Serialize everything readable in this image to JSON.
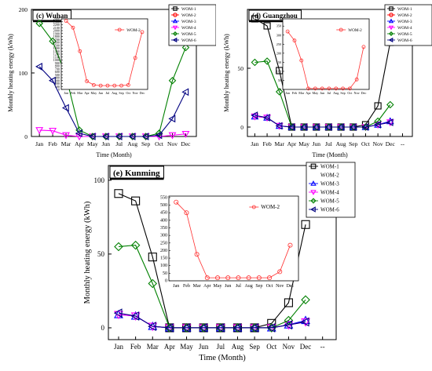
{
  "chart_data": [
    {
      "type": "line",
      "panel_label": "(c) Wuhan",
      "xlabel": "Time (Month)",
      "ylabel": "Monthly heating energy (kWh)",
      "x_ticks": [
        "Jan",
        "Feb",
        "Mar",
        "Apr",
        "May",
        "Jun",
        "Jul",
        "Aug",
        "Sep",
        "Oct",
        "Nov",
        "Dec"
      ],
      "ylim": [
        0,
        200
      ],
      "y_ticks": [
        0,
        100,
        200
      ],
      "legend_position": "top-right",
      "series": [
        {
          "name": "WOM-1",
          "color": "#000000",
          "marker": "square",
          "values": [
            null,
            null,
            null,
            null,
            null,
            null,
            null,
            null,
            null,
            null,
            null,
            null
          ]
        },
        {
          "name": "WOM-2",
          "color": "#ff0000",
          "marker": "circle",
          "values": [
            null,
            null,
            null,
            null,
            null,
            null,
            null,
            null,
            null,
            null,
            null,
            null
          ]
        },
        {
          "name": "WOM-3",
          "color": "#0000ff",
          "marker": "triangle",
          "values": [
            null,
            null,
            null,
            null,
            null,
            null,
            null,
            null,
            null,
            null,
            null,
            null
          ]
        },
        {
          "name": "WOM-4",
          "color": "#ff00ff",
          "marker": "tri-down",
          "values": [
            10,
            9,
            2,
            0,
            0,
            0,
            0,
            0,
            0,
            0,
            2,
            4
          ]
        },
        {
          "name": "WOM-5",
          "color": "#008000",
          "marker": "diamond",
          "values": [
            178,
            150,
            95,
            10,
            0,
            0,
            0,
            0,
            0,
            5,
            88,
            140
          ]
        },
        {
          "name": "WOM-6",
          "color": "#000080",
          "marker": "tri-left",
          "values": [
            110,
            88,
            45,
            5,
            0,
            0,
            0,
            0,
            0,
            2,
            28,
            70
          ]
        }
      ],
      "inset": {
        "series_name": "WOM-2",
        "y_ticks": [
          0,
          100,
          200,
          300,
          400,
          500,
          600,
          700,
          800,
          900,
          1000,
          1100,
          1200,
          1300,
          1400,
          1500,
          1600,
          1700,
          1800,
          1900,
          2000,
          2100,
          2200,
          2300,
          2400
        ],
        "ylim": [
          0,
          2400
        ],
        "x_ticks": [
          "Jan",
          "Feb",
          "Mar",
          "Apr",
          "May",
          "Jun",
          "Jul",
          "Aug",
          "Sep",
          "Oct",
          "Nov",
          "Dec"
        ],
        "values": [
          2330,
          2100,
          1300,
          280,
          150,
          130,
          130,
          130,
          130,
          150,
          1070,
          1950
        ]
      }
    },
    {
      "type": "line",
      "panel_label": "(d) Guangzhou",
      "xlabel": "Time (Month)",
      "ylabel": "Monthly heating energy (kWh)",
      "x_ticks": [
        "Jan",
        "Feb",
        "Mar",
        "Apr",
        "May",
        "Jun",
        "Jul",
        "Aug",
        "Sep",
        "Oct",
        "Nov",
        "Dec",
        "--"
      ],
      "ylim": [
        -8,
        100
      ],
      "y_ticks": [
        0,
        50
      ],
      "legend_position": "top-right",
      "series": [
        {
          "name": "WOM-1",
          "color": "#000000",
          "marker": "square",
          "values": [
            92,
            86,
            48,
            0,
            0,
            0,
            0,
            0,
            0,
            2,
            18,
            72
          ]
        },
        {
          "name": "WOM-2",
          "color": "#ff0000",
          "marker": "circle",
          "values": [
            null,
            null,
            null,
            null,
            null,
            null,
            null,
            null,
            null,
            null,
            null,
            null
          ]
        },
        {
          "name": "WOM-3",
          "color": "#0000ff",
          "marker": "triangle",
          "values": [
            9,
            8,
            1,
            0,
            0,
            0,
            0,
            0,
            0,
            0,
            2,
            5
          ]
        },
        {
          "name": "WOM-4",
          "color": "#ff00ff",
          "marker": "tri-down",
          "values": [
            9,
            8,
            1,
            0,
            0,
            0,
            0,
            0,
            0,
            0,
            2,
            4
          ]
        },
        {
          "name": "WOM-5",
          "color": "#008000",
          "marker": "diamond",
          "values": [
            55,
            56,
            30,
            0,
            0,
            0,
            0,
            0,
            0,
            0,
            5,
            19
          ]
        },
        {
          "name": "WOM-6",
          "color": "#000080",
          "marker": "tri-left",
          "values": [
            10,
            8,
            1,
            0,
            0,
            0,
            0,
            0,
            0,
            0,
            2,
            4
          ]
        }
      ],
      "inset": {
        "series_name": "WOM-2",
        "y_ticks": [
          0,
          50,
          100,
          150,
          200,
          250,
          300,
          350
        ],
        "ylim": [
          0,
          390
        ],
        "x_ticks": [
          "Jan",
          "Feb",
          "Mar",
          "Apr",
          "May",
          "Jun",
          "Jul",
          "Aug",
          "Sep",
          "Oct",
          "Nov",
          "Dec"
        ],
        "values": [
          320,
          270,
          160,
          5,
          5,
          5,
          5,
          5,
          5,
          5,
          55,
          235
        ]
      }
    },
    {
      "type": "line",
      "panel_label": "(e) Kunming",
      "xlabel": "Time (Month)",
      "ylabel": "Monthly heating energy (kWh)",
      "x_ticks": [
        "Jan",
        "Feb",
        "Mar",
        "Apr",
        "May",
        "Jun",
        "Jul",
        "Aug",
        "Sep",
        "Oct",
        "Nov",
        "Dec",
        "--"
      ],
      "ylim": [
        -8,
        110
      ],
      "y_ticks": [
        0,
        50,
        100
      ],
      "legend_position": "top-right",
      "series": [
        {
          "name": "WOM-1",
          "color": "#000000",
          "marker": "square",
          "values": [
            91,
            86,
            48,
            0,
            0,
            0,
            0,
            0,
            0,
            3,
            17,
            70
          ]
        },
        {
          "name": "WOM-2",
          "color": "#ff0000",
          "marker": "none",
          "values": [
            null,
            null,
            null,
            null,
            null,
            null,
            null,
            null,
            null,
            null,
            null,
            null
          ]
        },
        {
          "name": "WOM-3",
          "color": "#0000ff",
          "marker": "triangle",
          "values": [
            9,
            8,
            1,
            0,
            0,
            0,
            0,
            0,
            0,
            0,
            2,
            5
          ]
        },
        {
          "name": "WOM-4",
          "color": "#ff00ff",
          "marker": "tri-down",
          "values": [
            9,
            8,
            1,
            0,
            0,
            0,
            0,
            0,
            0,
            0,
            2,
            4
          ]
        },
        {
          "name": "WOM-5",
          "color": "#008000",
          "marker": "diamond",
          "values": [
            55,
            56,
            30,
            0,
            0,
            0,
            0,
            0,
            0,
            0,
            5,
            19
          ]
        },
        {
          "name": "WOM-6",
          "color": "#000080",
          "marker": "tri-left",
          "values": [
            10,
            8,
            1,
            0,
            0,
            0,
            0,
            0,
            0,
            0,
            2,
            4
          ]
        }
      ],
      "inset": {
        "series_name": "WOM-2",
        "y_ticks": [
          0,
          50,
          100,
          150,
          200,
          250,
          300,
          350,
          400,
          450,
          500,
          550
        ],
        "ylim": [
          0,
          560
        ],
        "x_ticks": [
          "Jan",
          "Feb",
          "Mar",
          "Apr",
          "May",
          "Jun",
          "Jul",
          "Aug",
          "Sep",
          "Oct",
          "Nov",
          "Dec"
        ],
        "values": [
          520,
          450,
          175,
          20,
          20,
          20,
          20,
          20,
          20,
          20,
          60,
          235
        ]
      }
    }
  ]
}
